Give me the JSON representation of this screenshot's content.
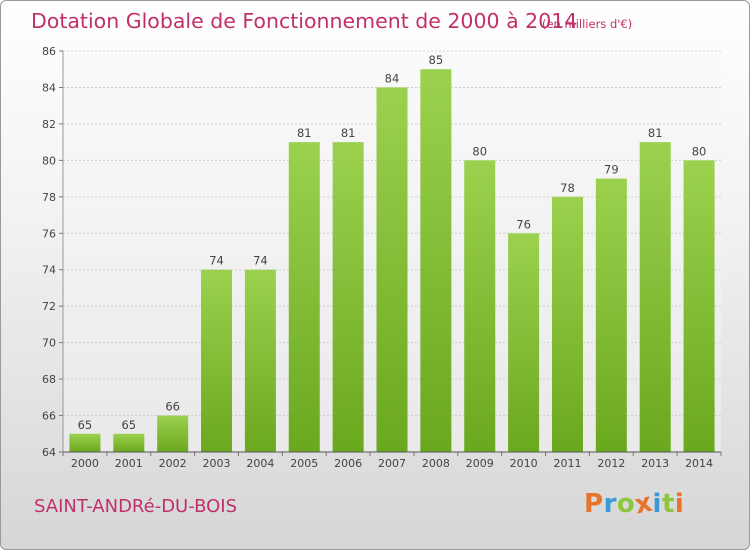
{
  "title": "Dotation Globale de Fonctionnement de 2000 à 2014",
  "unit": "(en milliers d'€)",
  "commune": "SAINT-ANDRé-DU-BOIS",
  "brand": {
    "letters": [
      "P",
      "r",
      "o",
      "x",
      "i",
      "t",
      "i"
    ],
    "colors": [
      "#e8732a",
      "#3a9ad9",
      "#8cc63f",
      "#e8732a",
      "#3a9ad9",
      "#8cc63f",
      "#e8732a"
    ]
  },
  "chart_data": {
    "type": "bar",
    "categories": [
      "2000",
      "2001",
      "2002",
      "2003",
      "2004",
      "2005",
      "2006",
      "2007",
      "2008",
      "2009",
      "2010",
      "2011",
      "2012",
      "2013",
      "2014"
    ],
    "values": [
      65,
      65,
      66,
      74,
      74,
      81,
      81,
      84,
      85,
      80,
      76,
      78,
      79,
      81,
      80
    ],
    "ylim": [
      64,
      86
    ],
    "yticks": [
      64,
      66,
      68,
      70,
      72,
      74,
      76,
      78,
      80,
      82,
      84,
      86
    ],
    "grid": true,
    "bar_color": "#8cc63f"
  }
}
